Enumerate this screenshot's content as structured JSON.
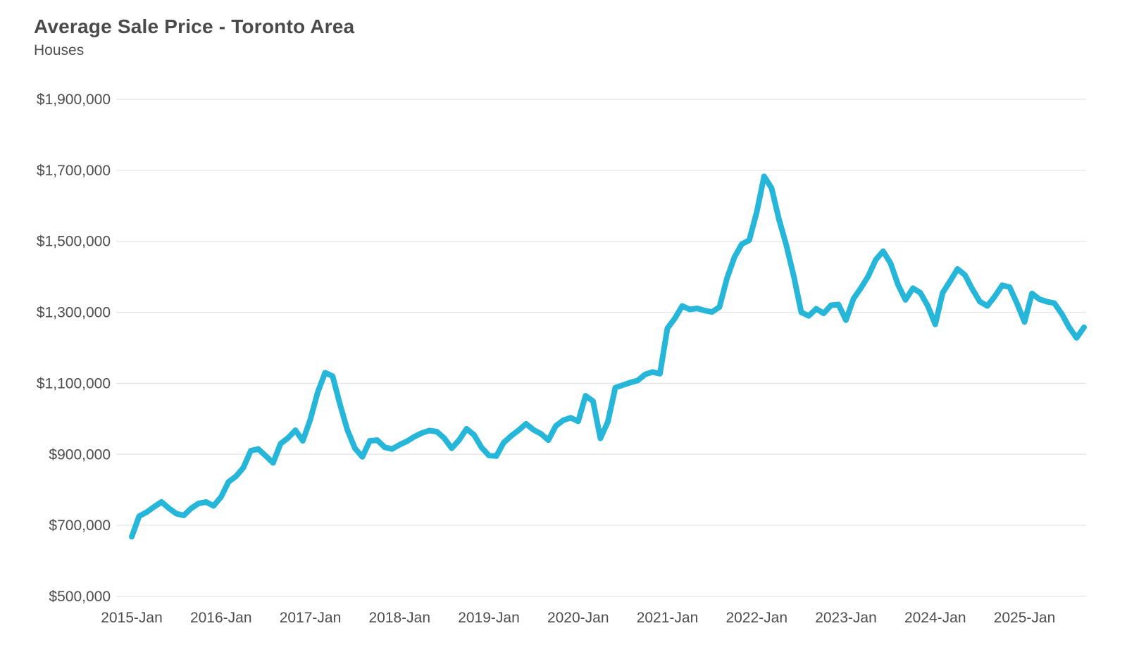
{
  "header": {
    "title": "Average Sale Price - Toronto Area",
    "subtitle": "Houses"
  },
  "chart_data": {
    "type": "line",
    "title": "Average Sale Price - Toronto Area",
    "subtitle": "Houses",
    "xlabel": "",
    "ylabel": "",
    "grid": "horizontal",
    "legend": "none",
    "line_color": "#26b6da",
    "line_width": 8,
    "grid_color": "#e5e5e5",
    "tick_label_color": "#4d4d4d",
    "ylim": [
      500000,
      1900000
    ],
    "y_tick_values": [
      1900000,
      1700000,
      1500000,
      1300000,
      1100000,
      900000,
      700000,
      500000
    ],
    "y_tick_labels": [
      "$1,900,000",
      "$1,700,000",
      "$1,500,000",
      "$1,300,000",
      "$1,100,000",
      "$900,000",
      "$700,000",
      "$500,000"
    ],
    "x_tick_labels": [
      "2015-Jan",
      "2016-Jan",
      "2017-Jan",
      "2018-Jan",
      "2019-Jan",
      "2020-Jan",
      "2021-Jan",
      "2022-Jan",
      "2023-Jan",
      "2024-Jan",
      "2025-Jan"
    ],
    "x_start_month": "2015-01",
    "x_end_month": "2025-09",
    "series": [
      {
        "name": "Average Sale Price - Houses",
        "values": [
          668000,
          726000,
          737000,
          752000,
          766000,
          748000,
          733000,
          728000,
          748000,
          762000,
          766000,
          755000,
          780000,
          822000,
          838000,
          862000,
          910000,
          915000,
          896000,
          876000,
          930000,
          946000,
          968000,
          938000,
          998000,
          1075000,
          1130000,
          1120000,
          1040000,
          968000,
          917000,
          893000,
          938000,
          940000,
          920000,
          915000,
          927000,
          937000,
          950000,
          960000,
          967000,
          964000,
          946000,
          917000,
          940000,
          972000,
          955000,
          920000,
          897000,
          895000,
          933000,
          952000,
          968000,
          986000,
          969000,
          958000,
          940000,
          980000,
          996000,
          1003000,
          993000,
          1065000,
          1050000,
          945000,
          992000,
          1088000,
          1095000,
          1102000,
          1108000,
          1125000,
          1132000,
          1127000,
          1255000,
          1283000,
          1318000,
          1308000,
          1311000,
          1305000,
          1301000,
          1315000,
          1395000,
          1455000,
          1492000,
          1503000,
          1582000,
          1683000,
          1650000,
          1562000,
          1488000,
          1400000,
          1300000,
          1290000,
          1310000,
          1297000,
          1320000,
          1322000,
          1278000,
          1338000,
          1368000,
          1402000,
          1448000,
          1472000,
          1438000,
          1378000,
          1335000,
          1368000,
          1355000,
          1318000,
          1266000,
          1355000,
          1388000,
          1422000,
          1405000,
          1365000,
          1330000,
          1318000,
          1345000,
          1376000,
          1371000,
          1325000,
          1273000,
          1353000,
          1337000,
          1330000,
          1326000,
          1296000,
          1258000,
          1228000,
          1258000
        ]
      }
    ]
  }
}
